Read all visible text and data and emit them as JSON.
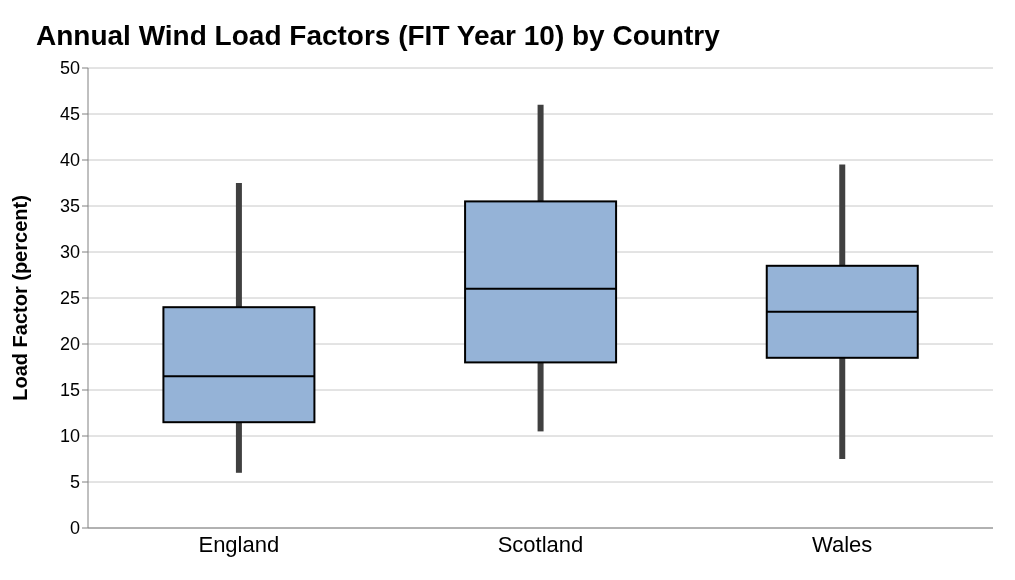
{
  "chart_data": {
    "type": "box",
    "title": "Annual Wind Load Factors (FIT Year 10)  by Country",
    "ylabel": "Load Factor (percent)",
    "categories": [
      "England",
      "Scotland",
      "Wales"
    ],
    "boxes": [
      {
        "low": 6,
        "q1": 11.5,
        "median": 16.5,
        "q3": 24,
        "high": 37.5
      },
      {
        "low": 10.5,
        "q1": 18,
        "median": 26,
        "q3": 35.5,
        "high": 46
      },
      {
        "low": 7.5,
        "q1": 18.5,
        "median": 23.5,
        "q3": 28.5,
        "high": 39.5
      }
    ],
    "color": "#95b3d7",
    "ylim": [
      0,
      50
    ],
    "yticks": [
      0,
      5,
      10,
      15,
      20,
      25,
      30,
      35,
      40,
      45,
      50
    ],
    "grid": "y",
    "legend": false
  }
}
